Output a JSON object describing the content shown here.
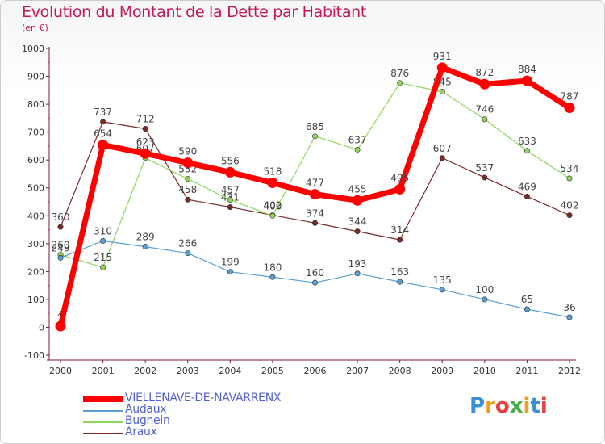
{
  "chart_data": {
    "type": "line",
    "title": "Evolution du Montant de la Dette par Habitant",
    "subtitle": "(en €)",
    "x": [
      "2000",
      "2001",
      "2002",
      "2003",
      "2004",
      "2005",
      "2006",
      "2007",
      "2008",
      "2009",
      "2010",
      "2011",
      "2012"
    ],
    "yticks": [
      -100,
      0,
      100,
      200,
      300,
      400,
      500,
      600,
      700,
      800,
      900,
      1000
    ],
    "ylim": [
      -100,
      1000
    ],
    "grid": false,
    "legend_position": "bottom-left",
    "series": [
      {
        "name": "Araux",
        "color": "#7b2a2a",
        "width": 1.2,
        "values": [
          360,
          737,
          712,
          458,
          431,
          402,
          374,
          344,
          314,
          607,
          537,
          469,
          402
        ]
      },
      {
        "name": "Bugnein",
        "color": "#8ed65a",
        "width": 1.2,
        "values": [
          260,
          215,
          607,
          532,
          457,
          400,
          685,
          637,
          876,
          845,
          746,
          633,
          534
        ]
      },
      {
        "name": "Audaux",
        "color": "#5a9fd4",
        "width": 1.2,
        "values": [
          249,
          310,
          289,
          266,
          199,
          180,
          160,
          193,
          163,
          135,
          100,
          65,
          36
        ]
      },
      {
        "name": "VIELLENAVE-DE-NAVARRENX",
        "color": "#ff0000",
        "width": 7,
        "values": [
          4,
          654,
          623,
          590,
          556,
          518,
          477,
          455,
          495,
          931,
          872,
          884,
          787
        ]
      }
    ]
  },
  "legend": [
    {
      "label": "VIELLENAVE-DE-NAVARRENX",
      "color": "#ff0000",
      "thick": true
    },
    {
      "label": "Audaux",
      "color": "#5a9fd4",
      "thick": false
    },
    {
      "label": "Bugnein",
      "color": "#8ed65a",
      "thick": false
    },
    {
      "label": "Araux",
      "color": "#7b2a2a",
      "thick": false
    }
  ],
  "logo": {
    "letters": [
      "P",
      "r",
      "o",
      "x",
      "i",
      "t",
      "i"
    ],
    "colors": [
      "#3a8fd8",
      "#f0a020",
      "#e84040",
      "#40b040",
      "#f0a020",
      "#3a8fd8",
      "#e84040"
    ]
  }
}
